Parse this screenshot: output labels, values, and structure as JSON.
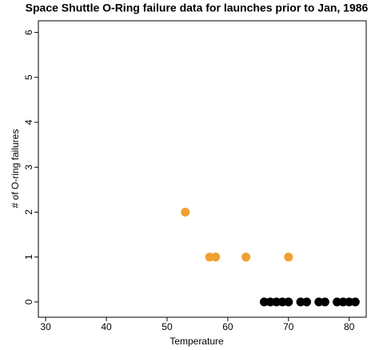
{
  "chart_data": {
    "type": "scatter",
    "title": "Space Shuttle O-Ring failure data for launches prior to Jan, 1986",
    "x_label": "Temperature",
    "y_label": "# of O-ring failures",
    "x": [
      53,
      57,
      58,
      63,
      70,
      66,
      67,
      68,
      69,
      70,
      72,
      73,
      75,
      76,
      78,
      79,
      80,
      81
    ],
    "values": [
      2,
      1,
      1,
      1,
      1,
      0,
      0,
      0,
      0,
      0,
      0,
      0,
      0,
      0,
      0,
      0,
      0,
      0
    ],
    "colors": [
      "#f0a030",
      "#f0a030",
      "#f0a030",
      "#f0a030",
      "#f0a030",
      "#000000",
      "#000000",
      "#000000",
      "#000000",
      "#000000",
      "#000000",
      "#000000",
      "#000000",
      "#000000",
      "#000000",
      "#000000",
      "#000000",
      "#000000"
    ],
    "xlim": [
      28.8,
      82.8
    ],
    "xticks": [
      30,
      40,
      50,
      60,
      70,
      80
    ],
    "ylim": [
      -0.34,
      6.26
    ],
    "yticks": [
      0,
      1,
      2,
      3,
      4,
      5,
      6
    ]
  }
}
